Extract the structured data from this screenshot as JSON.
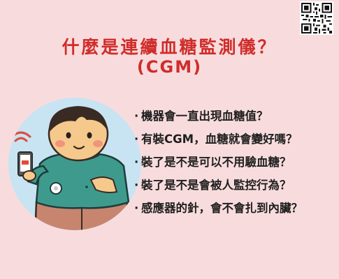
{
  "header": {
    "title": "什麼是連續血糖監測儀？",
    "subtitle": "(CGM)"
  },
  "icons": {
    "qr": "qr-code-icon",
    "illustration": "person-with-cgm-sensor-illustration",
    "phone": "smartphone-icon",
    "signal": "wireless-signal-icon"
  },
  "questions": [
    "機器會一直出現血糖值？",
    "有裝CGM，血糖就會變好嗎？",
    "裝了是不是可以不用驗血糖？",
    "裝了是不是會被人監控行為？",
    "感應器的針，會不會扎到內臟？"
  ],
  "colors": {
    "background": "#f8dcdd",
    "title": "#cf2d2b",
    "circle": "#c8e4f2",
    "shirt": "#3f9a8e",
    "pants": "#c7856f",
    "skin": "#f5c98c"
  }
}
